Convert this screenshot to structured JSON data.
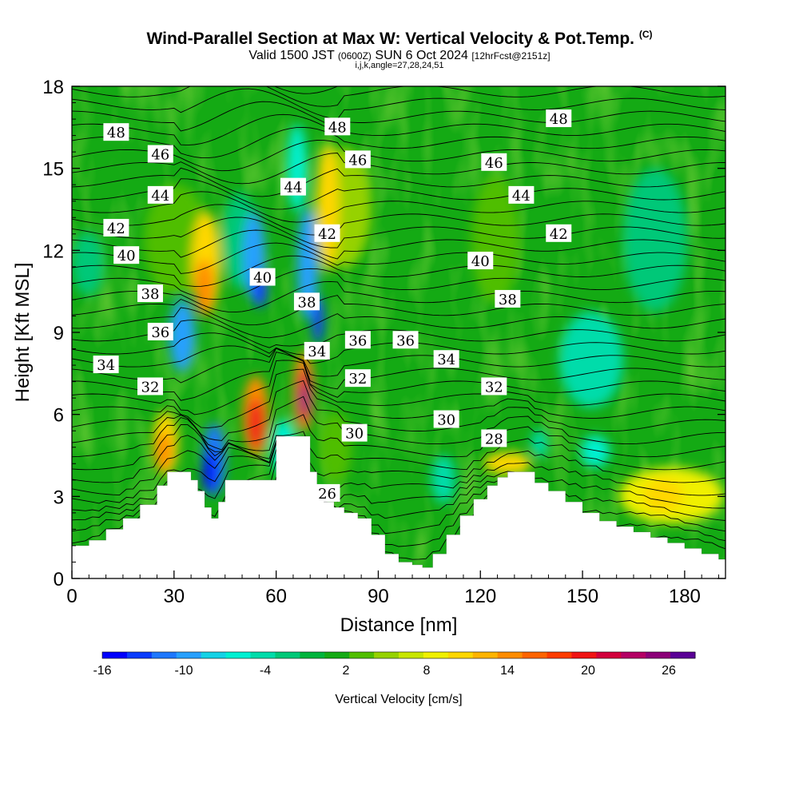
{
  "header": {
    "title_main": "Wind-Parallel Section at Max W: Vertical Velocity & Pot.Temp.",
    "title_mark": "(C)",
    "sub_a": "Valid 1500 JST",
    "sub_b": "(0600Z)",
    "sub_c": "SUN 6 Oct 2024",
    "sub_d": "[12hrFcst@2151z]",
    "meta": "i,j,k,angle=27,28,24,51"
  },
  "chart_data": {
    "type": "heatmap",
    "xlabel": "Distance [nm]",
    "ylabel": "Height [Kft MSL]",
    "xlim": [
      0,
      192
    ],
    "ylim": [
      0,
      18
    ],
    "x_ticks": [
      "0",
      "30",
      "60",
      "90",
      "120",
      "150",
      "180"
    ],
    "y_ticks": [
      "0",
      "3",
      "6",
      "9",
      "12",
      "15",
      "18"
    ],
    "grid": false,
    "colorbar": {
      "label": "Vertical Velocity [cm/s]",
      "tick_labels": [
        "-16",
        "-10",
        "-4",
        "2",
        "8",
        "14",
        "20",
        "26"
      ],
      "colors": [
        "#0000ff",
        "#0a3cff",
        "#1e78ff",
        "#28a0ff",
        "#14d2e6",
        "#00f0d2",
        "#00dcaa",
        "#00c878",
        "#00b43c",
        "#14aa14",
        "#50be00",
        "#96d200",
        "#c8e600",
        "#f0f000",
        "#ffd700",
        "#ffb400",
        "#ff8c00",
        "#ff6400",
        "#ff3c00",
        "#f01414",
        "#d2003c",
        "#b40064",
        "#8c0078",
        "#5a0096"
      ]
    },
    "terrain": {
      "x": [
        0,
        5,
        10,
        15,
        20,
        25,
        28,
        33,
        35,
        37,
        39,
        41,
        43,
        45,
        48,
        52,
        56,
        60,
        64,
        68,
        70,
        72,
        74,
        77,
        80,
        84,
        88,
        92,
        96,
        100,
        103,
        106,
        110,
        114,
        118,
        122,
        125,
        128,
        132,
        136,
        140,
        145,
        150,
        155,
        160,
        165,
        170,
        175,
        180,
        185,
        190,
        192
      ],
      "y": [
        1.2,
        1.4,
        1.8,
        2.2,
        2.7,
        3.4,
        3.9,
        3.9,
        3.6,
        3.2,
        2.6,
        2.2,
        2.8,
        3.6,
        3.6,
        3.6,
        3.6,
        5.2,
        5.2,
        5.2,
        3.9,
        3.1,
        2.8,
        2.6,
        2.4,
        2.2,
        1.6,
        0.9,
        0.6,
        0.5,
        0.4,
        0.9,
        1.6,
        2.3,
        2.9,
        3.4,
        3.7,
        3.9,
        3.9,
        3.5,
        3.2,
        2.8,
        2.4,
        2.1,
        1.9,
        1.7,
        1.5,
        1.3,
        1.1,
        0.9,
        0.7,
        0.6
      ]
    },
    "isentrope_labels": [
      {
        "text": "48",
        "x": 13,
        "y": 16.3
      },
      {
        "text": "48",
        "x": 78,
        "y": 16.5
      },
      {
        "text": "48",
        "x": 143,
        "y": 16.8
      },
      {
        "text": "46",
        "x": 26,
        "y": 15.5
      },
      {
        "text": "46",
        "x": 84,
        "y": 15.3
      },
      {
        "text": "46",
        "x": 124,
        "y": 15.2
      },
      {
        "text": "44",
        "x": 26,
        "y": 14.0
      },
      {
        "text": "44",
        "x": 65,
        "y": 14.3
      },
      {
        "text": "44",
        "x": 132,
        "y": 14.0
      },
      {
        "text": "42",
        "x": 13,
        "y": 12.8
      },
      {
        "text": "42",
        "x": 75,
        "y": 12.6
      },
      {
        "text": "42",
        "x": 143,
        "y": 12.6
      },
      {
        "text": "40",
        "x": 16,
        "y": 11.8
      },
      {
        "text": "40",
        "x": 56,
        "y": 11.0
      },
      {
        "text": "40",
        "x": 120,
        "y": 11.6
      },
      {
        "text": "38",
        "x": 23,
        "y": 10.4
      },
      {
        "text": "38",
        "x": 69,
        "y": 10.1
      },
      {
        "text": "38",
        "x": 128,
        "y": 10.2
      },
      {
        "text": "36",
        "x": 26,
        "y": 9.0
      },
      {
        "text": "36",
        "x": 84,
        "y": 8.7
      },
      {
        "text": "36",
        "x": 98,
        "y": 8.7
      },
      {
        "text": "34",
        "x": 10,
        "y": 7.8
      },
      {
        "text": "34",
        "x": 72,
        "y": 8.3
      },
      {
        "text": "34",
        "x": 110,
        "y": 8.0
      },
      {
        "text": "32",
        "x": 23,
        "y": 7.0
      },
      {
        "text": "32",
        "x": 84,
        "y": 7.3
      },
      {
        "text": "32",
        "x": 124,
        "y": 7.0
      },
      {
        "text": "30",
        "x": 83,
        "y": 5.3
      },
      {
        "text": "30",
        "x": 110,
        "y": 5.8
      },
      {
        "text": "28",
        "x": 124,
        "y": 5.1
      },
      {
        "text": "26",
        "x": 75,
        "y": 3.1
      }
    ]
  }
}
